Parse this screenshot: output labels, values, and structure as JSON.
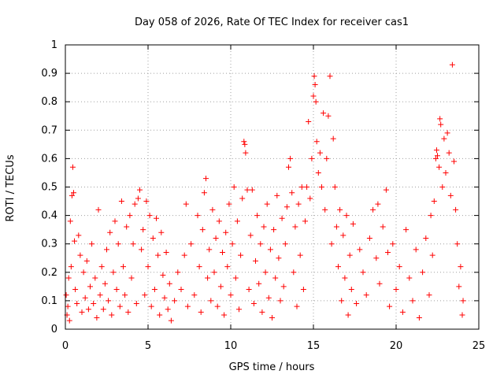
{
  "chart_data": {
    "type": "scatter",
    "title": "Day 058 of 2026, Rate Of TEC Index for receiver cas1",
    "xlabel": "GPS time / hours",
    "ylabel": "ROTI / TECUs",
    "xlim": [
      0,
      25
    ],
    "ylim": [
      0,
      1
    ],
    "x_ticks": [
      "0",
      "5",
      "10",
      "15",
      "20",
      "25"
    ],
    "y_ticks": [
      "0",
      "0.1",
      "0.2",
      "0.3",
      "0.4",
      "0.5",
      "0.6",
      "0.7",
      "0.8",
      "0.9",
      "1"
    ],
    "grid": true,
    "marker": "+",
    "color": "#ff0000",
    "series": [
      {
        "points": [
          [
            0.05,
            0.12
          ],
          [
            0.1,
            0.05
          ],
          [
            0.15,
            0.08
          ],
          [
            0.2,
            0.18
          ],
          [
            0.25,
            0.03
          ],
          [
            0.3,
            0.38
          ],
          [
            0.35,
            0.22
          ],
          [
            0.4,
            0.47
          ],
          [
            0.45,
            0.57
          ],
          [
            0.5,
            0.48
          ],
          [
            0.55,
            0.31
          ],
          [
            0.6,
            0.14
          ],
          [
            0.7,
            0.09
          ],
          [
            0.8,
            0.33
          ],
          [
            0.9,
            0.26
          ],
          [
            1.0,
            0.06
          ],
          [
            1.1,
            0.2
          ],
          [
            1.2,
            0.11
          ],
          [
            1.3,
            0.24
          ],
          [
            1.4,
            0.07
          ],
          [
            1.5,
            0.15
          ],
          [
            1.6,
            0.3
          ],
          [
            1.7,
            0.09
          ],
          [
            1.8,
            0.18
          ],
          [
            1.9,
            0.04
          ],
          [
            2.0,
            0.42
          ],
          [
            2.1,
            0.12
          ],
          [
            2.2,
            0.22
          ],
          [
            2.3,
            0.07
          ],
          [
            2.4,
            0.16
          ],
          [
            2.5,
            0.28
          ],
          [
            2.6,
            0.1
          ],
          [
            2.7,
            0.34
          ],
          [
            2.8,
            0.05
          ],
          [
            2.9,
            0.2
          ],
          [
            3.0,
            0.38
          ],
          [
            3.1,
            0.14
          ],
          [
            3.2,
            0.3
          ],
          [
            3.3,
            0.08
          ],
          [
            3.4,
            0.45
          ],
          [
            3.5,
            0.22
          ],
          [
            3.6,
            0.12
          ],
          [
            3.7,
            0.36
          ],
          [
            3.8,
            0.06
          ],
          [
            3.9,
            0.4
          ],
          [
            4.0,
            0.18
          ],
          [
            4.1,
            0.3
          ],
          [
            4.2,
            0.44
          ],
          [
            4.3,
            0.09
          ],
          [
            4.4,
            0.46
          ],
          [
            4.5,
            0.49
          ],
          [
            4.6,
            0.28
          ],
          [
            4.7,
            0.35
          ],
          [
            4.8,
            0.12
          ],
          [
            4.9,
            0.45
          ],
          [
            5.0,
            0.22
          ],
          [
            5.1,
            0.4
          ],
          [
            5.2,
            0.08
          ],
          [
            5.3,
            0.32
          ],
          [
            5.4,
            0.14
          ],
          [
            5.5,
            0.39
          ],
          [
            5.6,
            0.26
          ],
          [
            5.7,
            0.05
          ],
          [
            5.8,
            0.34
          ],
          [
            5.9,
            0.19
          ],
          [
            6.0,
            0.11
          ],
          [
            6.1,
            0.27
          ],
          [
            6.2,
            0.07
          ],
          [
            6.3,
            0.16
          ],
          [
            6.4,
            0.03
          ],
          [
            6.6,
            0.1
          ],
          [
            6.8,
            0.2
          ],
          [
            7.0,
            0.14
          ],
          [
            7.2,
            0.26
          ],
          [
            7.3,
            0.44
          ],
          [
            7.4,
            0.08
          ],
          [
            7.6,
            0.3
          ],
          [
            7.8,
            0.12
          ],
          [
            8.0,
            0.4
          ],
          [
            8.1,
            0.22
          ],
          [
            8.2,
            0.06
          ],
          [
            8.3,
            0.35
          ],
          [
            8.4,
            0.48
          ],
          [
            8.5,
            0.53
          ],
          [
            8.6,
            0.18
          ],
          [
            8.7,
            0.28
          ],
          [
            8.8,
            0.1
          ],
          [
            8.9,
            0.42
          ],
          [
            9.0,
            0.2
          ],
          [
            9.1,
            0.32
          ],
          [
            9.2,
            0.08
          ],
          [
            9.3,
            0.38
          ],
          [
            9.4,
            0.15
          ],
          [
            9.5,
            0.27
          ],
          [
            9.6,
            0.05
          ],
          [
            9.7,
            0.34
          ],
          [
            9.8,
            0.22
          ],
          [
            9.9,
            0.44
          ],
          [
            10.0,
            0.12
          ],
          [
            10.1,
            0.3
          ],
          [
            10.2,
            0.5
          ],
          [
            10.3,
            0.18
          ],
          [
            10.4,
            0.38
          ],
          [
            10.5,
            0.07
          ],
          [
            10.6,
            0.26
          ],
          [
            10.7,
            0.46
          ],
          [
            10.8,
            0.66
          ],
          [
            10.85,
            0.65
          ],
          [
            10.9,
            0.62
          ],
          [
            11.0,
            0.49
          ],
          [
            11.1,
            0.14
          ],
          [
            11.2,
            0.33
          ],
          [
            11.3,
            0.49
          ],
          [
            11.4,
            0.09
          ],
          [
            11.5,
            0.24
          ],
          [
            11.6,
            0.4
          ],
          [
            11.7,
            0.16
          ],
          [
            11.8,
            0.3
          ],
          [
            11.9,
            0.06
          ],
          [
            12.0,
            0.36
          ],
          [
            12.1,
            0.2
          ],
          [
            12.2,
            0.44
          ],
          [
            12.3,
            0.11
          ],
          [
            12.4,
            0.28
          ],
          [
            12.5,
            0.04
          ],
          [
            12.6,
            0.35
          ],
          [
            12.7,
            0.18
          ],
          [
            12.8,
            0.47
          ],
          [
            12.9,
            0.25
          ],
          [
            13.0,
            0.1
          ],
          [
            13.1,
            0.39
          ],
          [
            13.2,
            0.15
          ],
          [
            13.3,
            0.3
          ],
          [
            13.4,
            0.43
          ],
          [
            13.5,
            0.57
          ],
          [
            13.6,
            0.6
          ],
          [
            13.7,
            0.48
          ],
          [
            13.8,
            0.2
          ],
          [
            13.9,
            0.36
          ],
          [
            14.0,
            0.08
          ],
          [
            14.1,
            0.44
          ],
          [
            14.2,
            0.26
          ],
          [
            14.3,
            0.5
          ],
          [
            14.4,
            0.14
          ],
          [
            14.5,
            0.38
          ],
          [
            14.6,
            0.5
          ],
          [
            14.7,
            0.73
          ],
          [
            14.8,
            0.46
          ],
          [
            14.9,
            0.6
          ],
          [
            15.0,
            0.82
          ],
          [
            15.05,
            0.89
          ],
          [
            15.1,
            0.86
          ],
          [
            15.15,
            0.8
          ],
          [
            15.2,
            0.66
          ],
          [
            15.3,
            0.55
          ],
          [
            15.4,
            0.62
          ],
          [
            15.5,
            0.5
          ],
          [
            15.6,
            0.76
          ],
          [
            15.7,
            0.42
          ],
          [
            15.8,
            0.6
          ],
          [
            15.9,
            0.75
          ],
          [
            16.0,
            0.89
          ],
          [
            16.1,
            0.3
          ],
          [
            16.2,
            0.67
          ],
          [
            16.3,
            0.5
          ],
          [
            16.4,
            0.36
          ],
          [
            16.5,
            0.22
          ],
          [
            16.6,
            0.42
          ],
          [
            16.7,
            0.1
          ],
          [
            16.8,
            0.33
          ],
          [
            16.9,
            0.18
          ],
          [
            17.0,
            0.4
          ],
          [
            17.1,
            0.05
          ],
          [
            17.2,
            0.26
          ],
          [
            17.3,
            0.14
          ],
          [
            17.4,
            0.37
          ],
          [
            17.6,
            0.09
          ],
          [
            17.8,
            0.28
          ],
          [
            18.0,
            0.2
          ],
          [
            18.2,
            0.12
          ],
          [
            18.4,
            0.32
          ],
          [
            18.6,
            0.42
          ],
          [
            18.8,
            0.25
          ],
          [
            18.9,
            0.44
          ],
          [
            19.0,
            0.16
          ],
          [
            19.2,
            0.36
          ],
          [
            19.4,
            0.49
          ],
          [
            19.5,
            0.27
          ],
          [
            19.6,
            0.08
          ],
          [
            19.8,
            0.3
          ],
          [
            20.0,
            0.14
          ],
          [
            20.2,
            0.22
          ],
          [
            20.4,
            0.06
          ],
          [
            20.6,
            0.35
          ],
          [
            20.8,
            0.18
          ],
          [
            21.0,
            0.1
          ],
          [
            21.2,
            0.28
          ],
          [
            21.4,
            0.04
          ],
          [
            21.6,
            0.2
          ],
          [
            21.8,
            0.32
          ],
          [
            22.0,
            0.12
          ],
          [
            22.1,
            0.4
          ],
          [
            22.2,
            0.26
          ],
          [
            22.3,
            0.45
          ],
          [
            22.4,
            0.6
          ],
          [
            22.45,
            0.63
          ],
          [
            22.5,
            0.61
          ],
          [
            22.6,
            0.57
          ],
          [
            22.65,
            0.74
          ],
          [
            22.7,
            0.72
          ],
          [
            22.8,
            0.5
          ],
          [
            22.9,
            0.67
          ],
          [
            23.0,
            0.55
          ],
          [
            23.1,
            0.69
          ],
          [
            23.2,
            0.62
          ],
          [
            23.3,
            0.47
          ],
          [
            23.4,
            0.93
          ],
          [
            23.5,
            0.59
          ],
          [
            23.6,
            0.42
          ],
          [
            23.7,
            0.3
          ],
          [
            23.8,
            0.15
          ],
          [
            23.9,
            0.22
          ],
          [
            24.0,
            0.05
          ],
          [
            24.05,
            0.1
          ]
        ]
      }
    ]
  }
}
